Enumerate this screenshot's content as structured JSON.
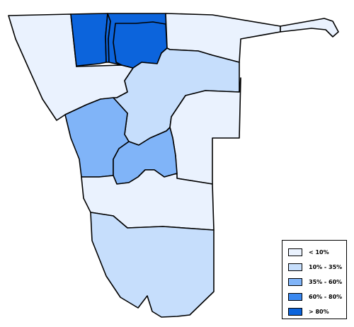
{
  "colors": {
    "lt10": "#eaf2fe",
    "b10_35": "#c6defc",
    "b35_60": "#80b4f8",
    "b60_80": "#3a88f0",
    "gt80": "#0c64dc"
  },
  "legend": {
    "items": [
      {
        "label": "< 10%",
        "color": "#eaf2fe"
      },
      {
        "label": "10% - 35%",
        "color": "#c6defc"
      },
      {
        "label": "35% - 60%",
        "color": "#80b4f8"
      },
      {
        "label": "60% - 80%",
        "color": "#3a88f0"
      },
      {
        "label": "> 80%",
        "color": "#0c64dc"
      }
    ]
  }
}
